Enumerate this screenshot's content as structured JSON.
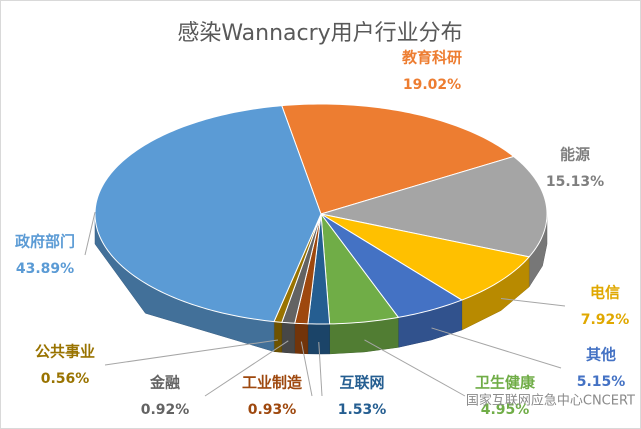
{
  "chart_data": {
    "type": "pie",
    "title": "感染Wannacry用户行业分布",
    "categories": [
      "教育科研",
      "能源",
      "电信",
      "其他",
      "卫生健康",
      "互联网",
      "工业制造",
      "金融",
      "公共事业",
      "政府部门"
    ],
    "values": [
      19.02,
      15.13,
      7.92,
      5.15,
      4.95,
      1.53,
      0.93,
      0.92,
      0.56,
      43.89
    ],
    "value_labels": [
      "19.02%",
      "15.13%",
      "7.92%",
      "5.15%",
      "4.95%",
      "1.53%",
      "0.93%",
      "0.92%",
      "0.56%",
      "43.89%"
    ],
    "colors": [
      "#ed7d31",
      "#a5a5a5",
      "#ffc000",
      "#4472c4",
      "#70ad47",
      "#255e91",
      "#9e480e",
      "#636363",
      "#997300",
      "#5b9bd5"
    ],
    "watermark": "国家互联网应急中心CNCERT"
  }
}
